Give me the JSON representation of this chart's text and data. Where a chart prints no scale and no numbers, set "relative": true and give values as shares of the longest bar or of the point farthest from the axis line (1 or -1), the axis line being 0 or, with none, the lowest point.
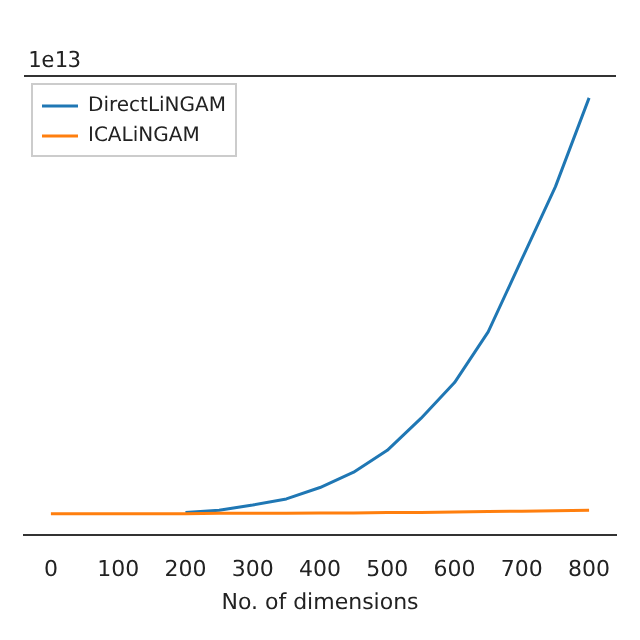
{
  "chart_data": {
    "type": "line",
    "relative": true,
    "xlabel": "No. of dimensions",
    "annotations": [
      "1e13"
    ],
    "x": [
      0,
      50,
      100,
      150,
      200,
      250,
      300,
      350,
      400,
      450,
      500,
      550,
      600,
      650,
      700,
      750,
      800
    ],
    "xlim": [
      -40,
      840
    ],
    "xticks": [
      0,
      100,
      200,
      300,
      400,
      500,
      600,
      700,
      800
    ],
    "series": [
      {
        "name": "DirectLiNGAM",
        "color": "#1f77b4",
        "values": [
          null,
          null,
          null,
          null,
          0.052,
          0.057,
          0.069,
          0.083,
          0.109,
          0.144,
          0.194,
          0.267,
          0.349,
          0.465,
          0.631,
          0.797,
          1.0
        ]
      },
      {
        "name": "ICALiNGAM",
        "color": "#ff7f0e",
        "values": [
          0.049,
          0.049,
          0.049,
          0.049,
          0.049,
          0.05,
          0.05,
          0.05,
          0.051,
          0.051,
          0.052,
          0.052,
          0.053,
          0.054,
          0.055,
          0.056,
          0.057
        ]
      }
    ],
    "legend": "top left",
    "grid": false,
    "marker": "none",
    "line_style": "solid"
  }
}
